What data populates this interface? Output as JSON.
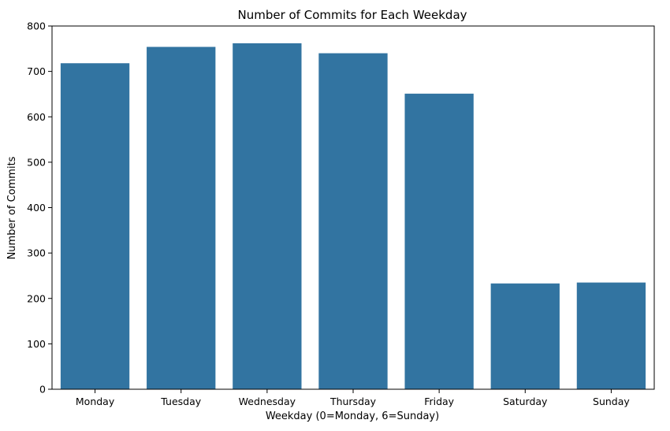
{
  "chart_data": {
    "type": "bar",
    "title": "Number of Commits for Each Weekday",
    "xlabel": "Weekday (0=Monday, 6=Sunday)",
    "ylabel": "Number of Commits",
    "categories": [
      "Monday",
      "Tuesday",
      "Wednesday",
      "Thursday",
      "Friday",
      "Saturday",
      "Sunday"
    ],
    "values": [
      718,
      754,
      762,
      740,
      651,
      233,
      235
    ],
    "ylim": [
      0,
      800
    ],
    "yticks": [
      0,
      100,
      200,
      300,
      400,
      500,
      600,
      700,
      800
    ],
    "grid": false,
    "legend": "none",
    "bar_color": "#3274a1",
    "axis_color": "#000000"
  }
}
